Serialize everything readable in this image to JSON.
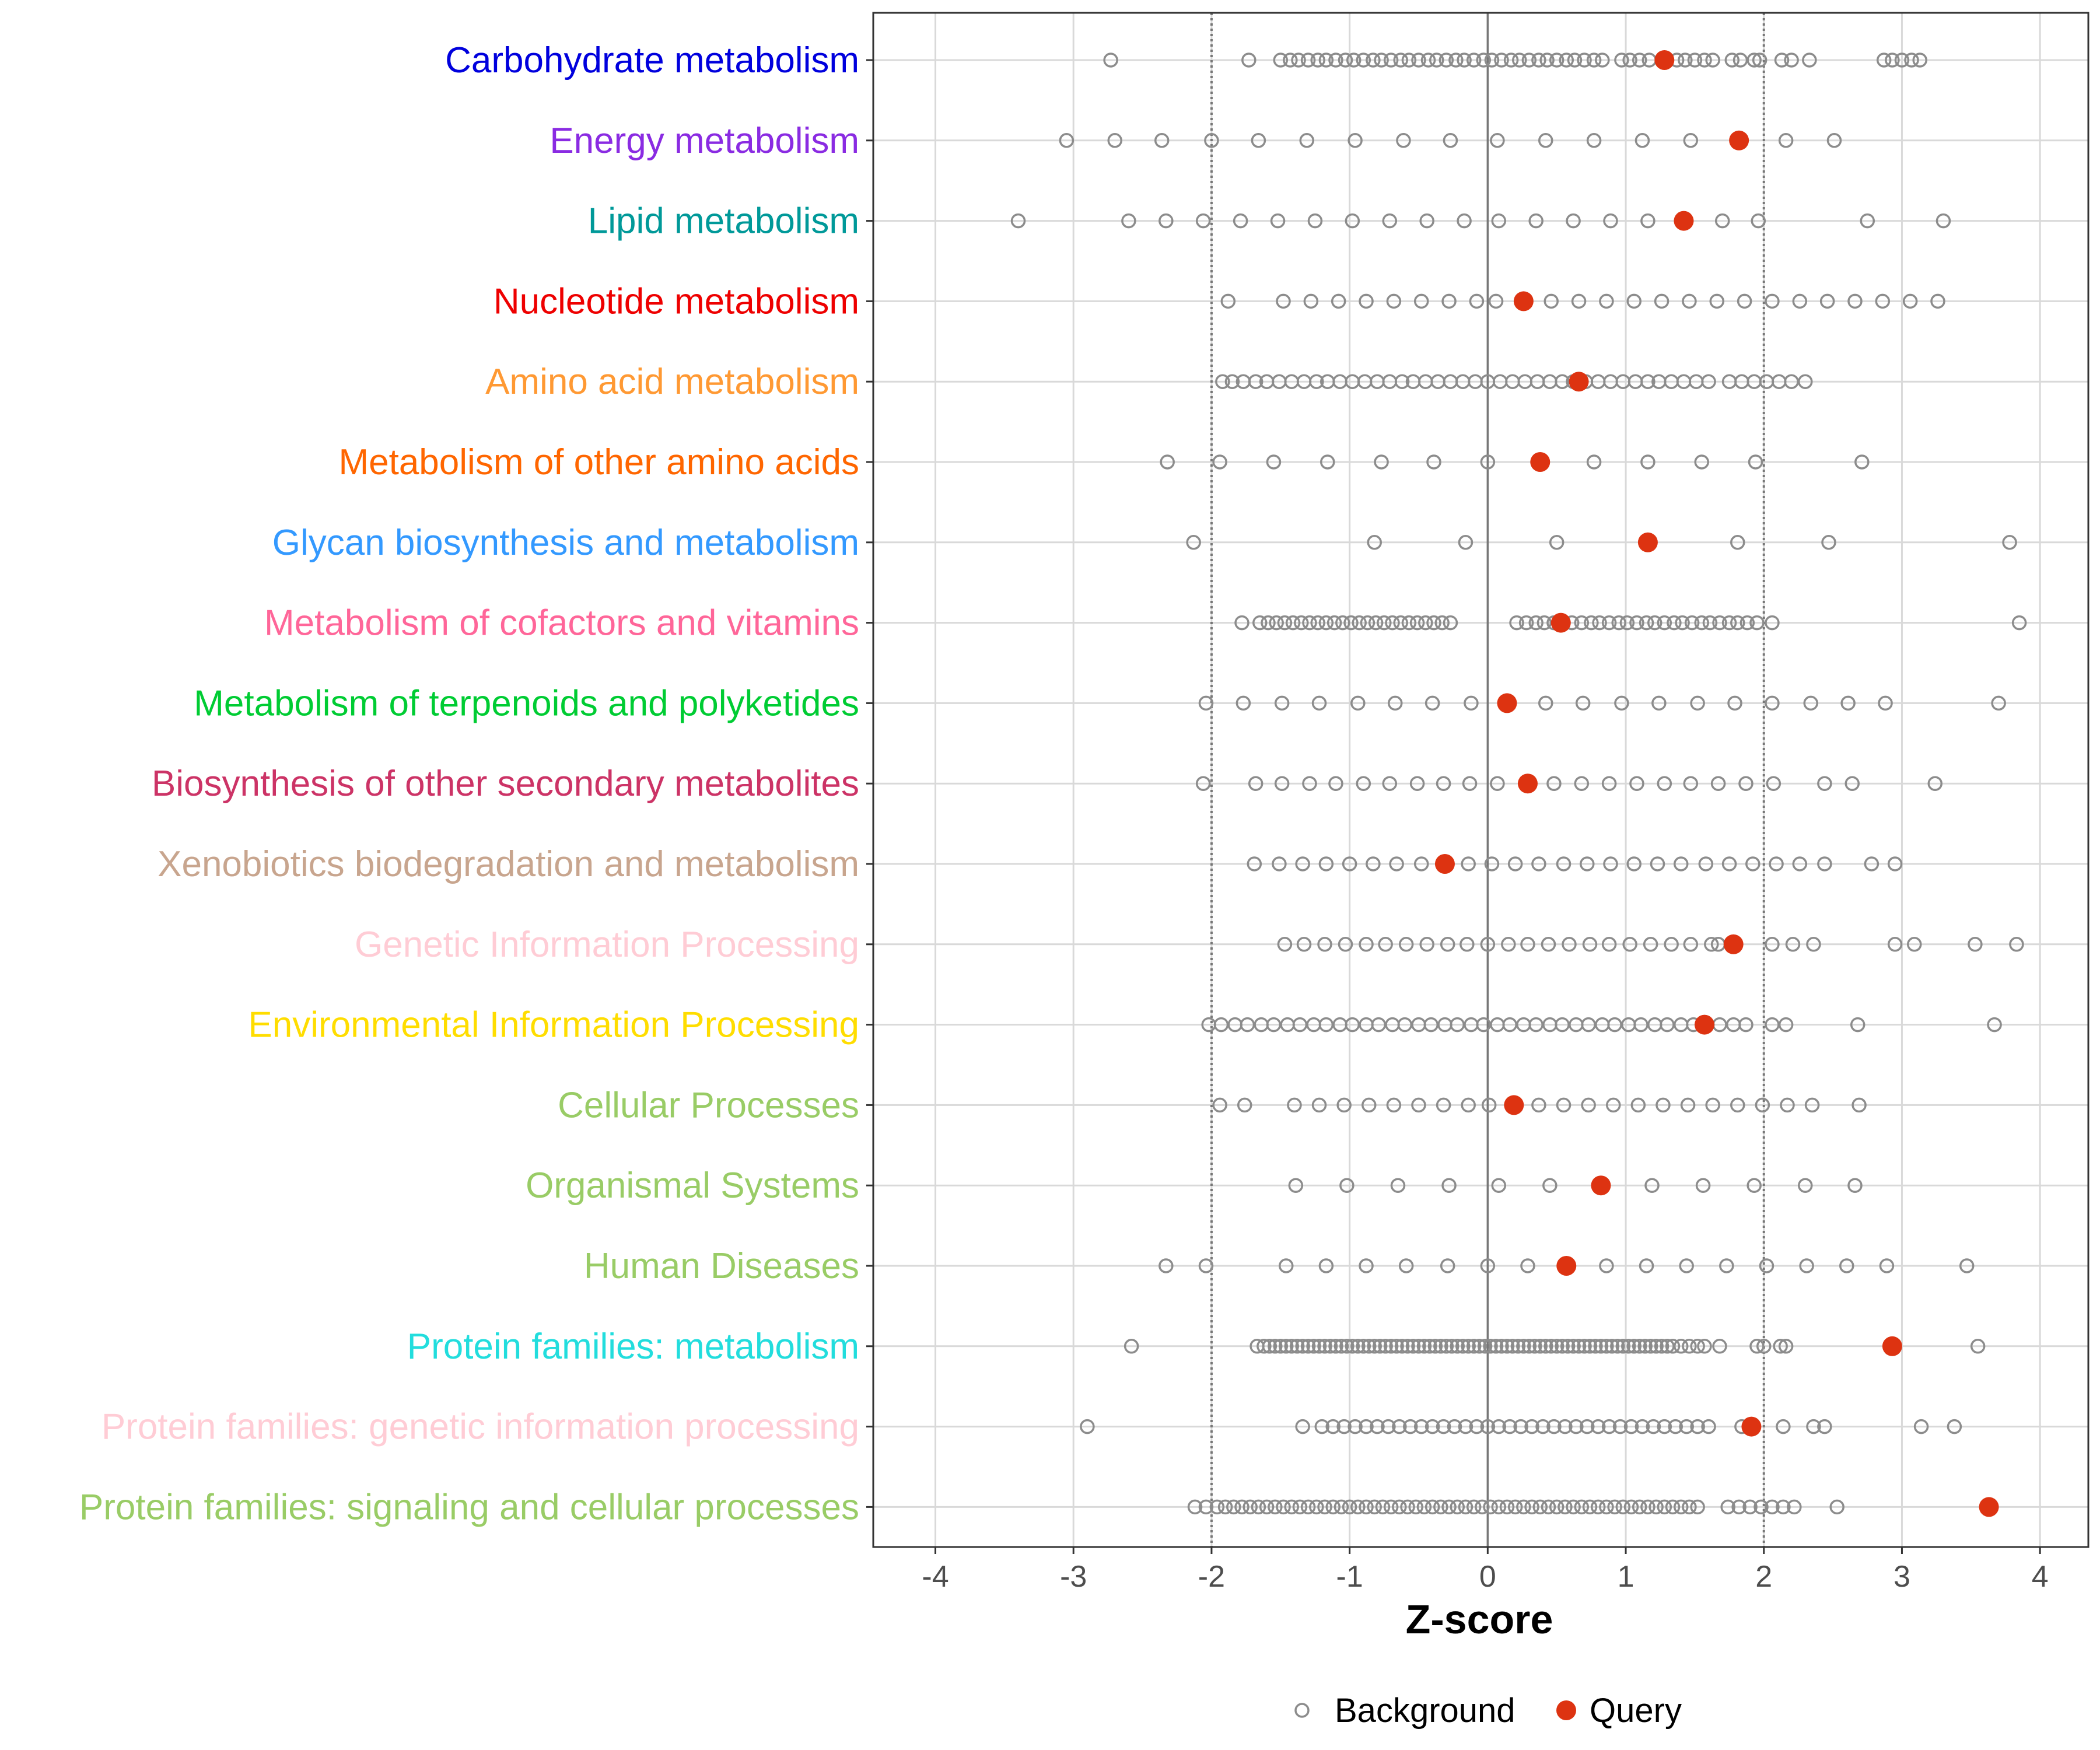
{
  "chart_data": {
    "type": "scatter",
    "xlabel": "Z-score",
    "ylabel": "",
    "xlim": [
      -4.45,
      4.35
    ],
    "xticks": [
      -4,
      -3,
      -2,
      -1,
      0,
      1,
      2,
      3,
      4
    ],
    "xtick_labels": [
      "-4",
      "-3",
      "-2",
      "-1",
      "0",
      "1",
      "2",
      "3",
      "4"
    ],
    "reference_lines": [
      -2,
      0,
      2
    ],
    "grid": true,
    "legend_position": "bottom",
    "legend": [
      {
        "name": "Background",
        "marker": "open-circle",
        "color": "#8c8c8c"
      },
      {
        "name": "Query",
        "marker": "filled-circle",
        "color": "#dd3311"
      }
    ],
    "categories": [
      {
        "name": "Carbohydrate metabolism",
        "color": "#0000dd",
        "query": 1.28,
        "background": [
          -2.73,
          -1.73,
          -1.5,
          -1.43,
          -1.37,
          -1.3,
          -1.23,
          -1.17,
          -1.1,
          -1.03,
          -0.97,
          -0.9,
          -0.83,
          -0.77,
          -0.7,
          -0.63,
          -0.57,
          -0.5,
          -0.43,
          -0.37,
          -0.3,
          -0.23,
          -0.17,
          -0.1,
          -0.03,
          0.03,
          0.1,
          0.17,
          0.23,
          0.3,
          0.37,
          0.43,
          0.5,
          0.57,
          0.63,
          0.7,
          0.77,
          0.83,
          0.97,
          1.03,
          1.1,
          1.17,
          1.37,
          1.43,
          1.5,
          1.57,
          1.63,
          1.77,
          1.83,
          1.93,
          1.97,
          2.13,
          2.2,
          2.33,
          2.87,
          2.93,
          3.0,
          3.07,
          3.13
        ]
      },
      {
        "name": "Energy metabolism",
        "color": "#8a2be2",
        "query": 1.82,
        "background": [
          -3.05,
          -2.7,
          -2.36,
          -2.0,
          -1.66,
          -1.31,
          -0.96,
          -0.61,
          -0.27,
          0.07,
          0.42,
          0.77,
          1.12,
          1.47,
          2.16,
          2.51
        ]
      },
      {
        "name": "Lipid metabolism",
        "color": "#009999",
        "query": 1.42,
        "background": [
          -3.4,
          -2.6,
          -2.33,
          -2.06,
          -1.79,
          -1.52,
          -1.25,
          -0.98,
          -0.71,
          -0.44,
          -0.17,
          0.08,
          0.35,
          0.62,
          0.89,
          1.16,
          1.7,
          1.96,
          2.75,
          3.3
        ]
      },
      {
        "name": "Nucleotide metabolism",
        "color": "#ee0000",
        "query": 0.26,
        "background": [
          -1.88,
          -1.48,
          -1.28,
          -1.08,
          -0.88,
          -0.68,
          -0.48,
          -0.28,
          -0.08,
          0.06,
          0.46,
          0.66,
          0.86,
          1.06,
          1.26,
          1.46,
          1.66,
          1.86,
          2.06,
          2.26,
          2.46,
          2.66,
          2.86,
          3.06,
          3.26
        ]
      },
      {
        "name": "Amino acid metabolism",
        "color": "#ff9933",
        "query": 0.66,
        "background": [
          -1.92,
          -1.85,
          -1.77,
          -1.68,
          -1.6,
          -1.51,
          -1.42,
          -1.33,
          -1.24,
          -1.16,
          -1.07,
          -0.98,
          -0.89,
          -0.8,
          -0.71,
          -0.62,
          -0.54,
          -0.45,
          -0.36,
          -0.27,
          -0.18,
          -0.09,
          0.0,
          0.09,
          0.18,
          0.27,
          0.36,
          0.45,
          0.54,
          0.62,
          0.71,
          0.8,
          0.89,
          0.98,
          1.07,
          1.16,
          1.24,
          1.33,
          1.42,
          1.51,
          1.6,
          1.75,
          1.84,
          1.93,
          2.02,
          2.11,
          2.2,
          2.3
        ]
      },
      {
        "name": "Metabolism of other amino acids",
        "color": "#ff6600",
        "query": 0.38,
        "background": [
          -2.32,
          -1.94,
          -1.55,
          -1.16,
          -0.77,
          -0.39,
          0.0,
          0.77,
          1.16,
          1.55,
          1.94,
          2.71
        ]
      },
      {
        "name": "Glycan biosynthesis and metabolism",
        "color": "#3399ff",
        "query": 1.16,
        "background": [
          -2.13,
          -0.82,
          -0.16,
          0.5,
          1.81,
          2.47,
          3.78
        ]
      },
      {
        "name": "Metabolism of cofactors and vitamins",
        "color": "#ff6699",
        "query": 0.53,
        "background": [
          -1.78,
          -1.65,
          -1.59,
          -1.53,
          -1.47,
          -1.41,
          -1.35,
          -1.29,
          -1.23,
          -1.17,
          -1.11,
          -1.05,
          -0.99,
          -0.93,
          -0.87,
          -0.81,
          -0.75,
          -0.69,
          -0.63,
          -0.57,
          -0.51,
          -0.45,
          -0.39,
          -0.33,
          -0.27,
          0.21,
          0.28,
          0.35,
          0.41,
          0.48,
          0.61,
          0.68,
          0.75,
          0.81,
          0.88,
          0.95,
          1.01,
          1.08,
          1.15,
          1.21,
          1.28,
          1.35,
          1.41,
          1.48,
          1.55,
          1.61,
          1.68,
          1.75,
          1.81,
          1.88,
          1.95,
          2.06,
          3.85
        ]
      },
      {
        "name": "Metabolism of terpenoids and polyketides",
        "color": "#00cc33",
        "query": 0.14,
        "background": [
          -2.04,
          -1.77,
          -1.49,
          -1.22,
          -0.94,
          -0.67,
          -0.4,
          -0.12,
          0.42,
          0.69,
          0.97,
          1.24,
          1.52,
          1.79,
          2.06,
          2.34,
          2.61,
          2.88,
          3.7
        ]
      },
      {
        "name": "Biosynthesis of other secondary metabolites",
        "color": "#cc3366",
        "query": 0.29,
        "background": [
          -2.06,
          -1.68,
          -1.49,
          -1.29,
          -1.1,
          -0.9,
          -0.71,
          -0.51,
          -0.32,
          -0.13,
          0.07,
          0.48,
          0.68,
          0.88,
          1.08,
          1.28,
          1.47,
          1.67,
          1.87,
          2.07,
          2.44,
          2.64,
          3.24
        ]
      },
      {
        "name": "Xenobiotics biodegradation and metabolism",
        "color": "#c8a58e",
        "query": -0.31,
        "background": [
          -1.69,
          -1.51,
          -1.34,
          -1.17,
          -1.0,
          -0.83,
          -0.66,
          -0.48,
          -0.14,
          0.03,
          0.2,
          0.37,
          0.55,
          0.72,
          0.89,
          1.06,
          1.23,
          1.4,
          1.58,
          1.75,
          1.92,
          2.09,
          2.26,
          2.44,
          2.78,
          2.95
        ]
      },
      {
        "name": "Genetic Information Processing",
        "color": "#ffccd5",
        "query": 1.78,
        "background": [
          -1.47,
          -1.33,
          -1.18,
          -1.03,
          -0.88,
          -0.74,
          -0.59,
          -0.44,
          -0.29,
          -0.15,
          0.0,
          0.15,
          0.29,
          0.44,
          0.59,
          0.74,
          0.88,
          1.03,
          1.18,
          1.33,
          1.47,
          1.62,
          1.67,
          2.06,
          2.21,
          2.36,
          2.95,
          3.09,
          3.53,
          3.83
        ]
      },
      {
        "name": "Environmental Information Processing",
        "color": "#ffdd00",
        "query": 1.57,
        "background": [
          -2.02,
          -1.93,
          -1.83,
          -1.74,
          -1.64,
          -1.55,
          -1.45,
          -1.36,
          -1.26,
          -1.17,
          -1.07,
          -0.98,
          -0.88,
          -0.79,
          -0.69,
          -0.6,
          -0.5,
          -0.41,
          -0.31,
          -0.22,
          -0.12,
          -0.03,
          0.07,
          0.16,
          0.26,
          0.35,
          0.45,
          0.54,
          0.64,
          0.73,
          0.83,
          0.92,
          1.02,
          1.11,
          1.21,
          1.3,
          1.4,
          1.49,
          1.59,
          1.68,
          1.78,
          1.87,
          2.06,
          2.16,
          2.68,
          3.67
        ]
      },
      {
        "name": "Cellular Processes",
        "color": "#99cc66",
        "query": 0.19,
        "background": [
          -1.94,
          -1.76,
          -1.4,
          -1.22,
          -1.04,
          -0.86,
          -0.68,
          -0.5,
          -0.32,
          -0.14,
          0.01,
          0.37,
          0.55,
          0.73,
          0.91,
          1.09,
          1.27,
          1.45,
          1.63,
          1.81,
          1.99,
          2.17,
          2.35,
          2.69
        ]
      },
      {
        "name": "Organismal Systems",
        "color": "#99cc66",
        "query": 0.82,
        "background": [
          -1.39,
          -1.02,
          -0.65,
          -0.28,
          0.08,
          0.45,
          1.19,
          1.56,
          1.93,
          2.3,
          2.66
        ]
      },
      {
        "name": "Human Diseases",
        "color": "#99cc66",
        "query": 0.57,
        "background": [
          -2.33,
          -2.04,
          -1.46,
          -1.17,
          -0.88,
          -0.59,
          -0.29,
          0.0,
          0.29,
          0.86,
          1.15,
          1.44,
          1.73,
          2.02,
          2.31,
          2.6,
          2.89,
          3.47
        ]
      },
      {
        "name": "Protein families: metabolism",
        "color": "#22dddd",
        "query": 2.93,
        "background": [
          -2.58,
          -1.67,
          -1.62,
          -1.58,
          -1.54,
          -1.5,
          -1.46,
          -1.42,
          -1.38,
          -1.34,
          -1.3,
          -1.26,
          -1.22,
          -1.18,
          -1.14,
          -1.1,
          -1.06,
          -1.02,
          -0.98,
          -0.94,
          -0.9,
          -0.86,
          -0.82,
          -0.78,
          -0.74,
          -0.7,
          -0.66,
          -0.62,
          -0.58,
          -0.54,
          -0.5,
          -0.46,
          -0.42,
          -0.38,
          -0.34,
          -0.3,
          -0.26,
          -0.22,
          -0.18,
          -0.14,
          -0.1,
          -0.06,
          -0.02,
          0.02,
          0.06,
          0.1,
          0.14,
          0.18,
          0.22,
          0.26,
          0.3,
          0.34,
          0.38,
          0.42,
          0.46,
          0.5,
          0.54,
          0.58,
          0.62,
          0.66,
          0.7,
          0.74,
          0.78,
          0.82,
          0.86,
          0.9,
          0.94,
          0.98,
          1.02,
          1.06,
          1.1,
          1.14,
          1.18,
          1.22,
          1.26,
          1.3,
          1.34,
          1.4,
          1.46,
          1.52,
          1.57,
          1.68,
          1.95,
          2.0,
          2.12,
          2.16,
          3.55
        ]
      },
      {
        "name": "Protein families: genetic information processing",
        "color": "#ffccd5",
        "query": 1.91,
        "background": [
          -2.9,
          -1.34,
          -1.2,
          -1.12,
          -1.04,
          -0.96,
          -0.88,
          -0.8,
          -0.72,
          -0.64,
          -0.56,
          -0.48,
          -0.4,
          -0.32,
          -0.24,
          -0.16,
          -0.08,
          0.0,
          0.08,
          0.16,
          0.24,
          0.32,
          0.4,
          0.48,
          0.56,
          0.64,
          0.72,
          0.8,
          0.88,
          0.96,
          1.04,
          1.12,
          1.2,
          1.28,
          1.36,
          1.44,
          1.52,
          1.6,
          1.84,
          2.14,
          2.36,
          2.44,
          3.14,
          3.38
        ]
      },
      {
        "name": "Protein families: signaling and cellular processes",
        "color": "#99cc66",
        "query": 3.63,
        "background": [
          -2.12,
          -2.04,
          -1.96,
          -1.9,
          -1.84,
          -1.78,
          -1.72,
          -1.66,
          -1.6,
          -1.54,
          -1.48,
          -1.42,
          -1.36,
          -1.3,
          -1.24,
          -1.18,
          -1.12,
          -1.06,
          -1.0,
          -0.94,
          -0.88,
          -0.82,
          -0.76,
          -0.7,
          -0.64,
          -0.58,
          -0.52,
          -0.46,
          -0.4,
          -0.34,
          -0.28,
          -0.22,
          -0.16,
          -0.1,
          -0.04,
          0.02,
          0.08,
          0.14,
          0.2,
          0.26,
          0.32,
          0.38,
          0.44,
          0.5,
          0.56,
          0.62,
          0.68,
          0.74,
          0.8,
          0.86,
          0.92,
          0.98,
          1.04,
          1.1,
          1.16,
          1.22,
          1.28,
          1.34,
          1.4,
          1.46,
          1.52,
          1.74,
          1.82,
          1.9,
          1.98,
          2.06,
          2.14,
          2.22,
          2.53
        ]
      }
    ]
  }
}
